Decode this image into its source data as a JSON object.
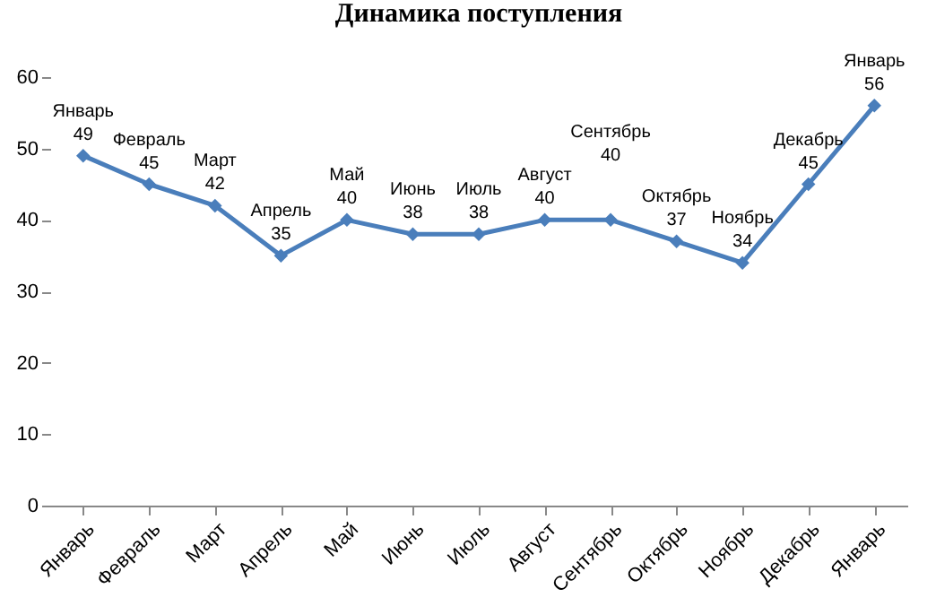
{
  "chart_data": {
    "type": "line",
    "title": "Динамика поступления",
    "categories": [
      "Январь",
      "Февраль",
      "Март",
      "Апрель",
      "Май",
      "Июнь",
      "Июль",
      "Август",
      "Сентябрь",
      "Октябрь",
      "Ноябрь",
      "Декабрь",
      "Январь"
    ],
    "values": [
      49,
      45,
      42,
      35,
      40,
      38,
      38,
      40,
      40,
      37,
      34,
      45,
      56
    ],
    "color": "#4a7ebb",
    "ylim": [
      0,
      60
    ],
    "yticks": [
      0,
      10,
      20,
      30,
      40,
      50,
      60
    ],
    "grid": false,
    "marker": "diamond",
    "line_style": "solid",
    "data_labels": true
  }
}
